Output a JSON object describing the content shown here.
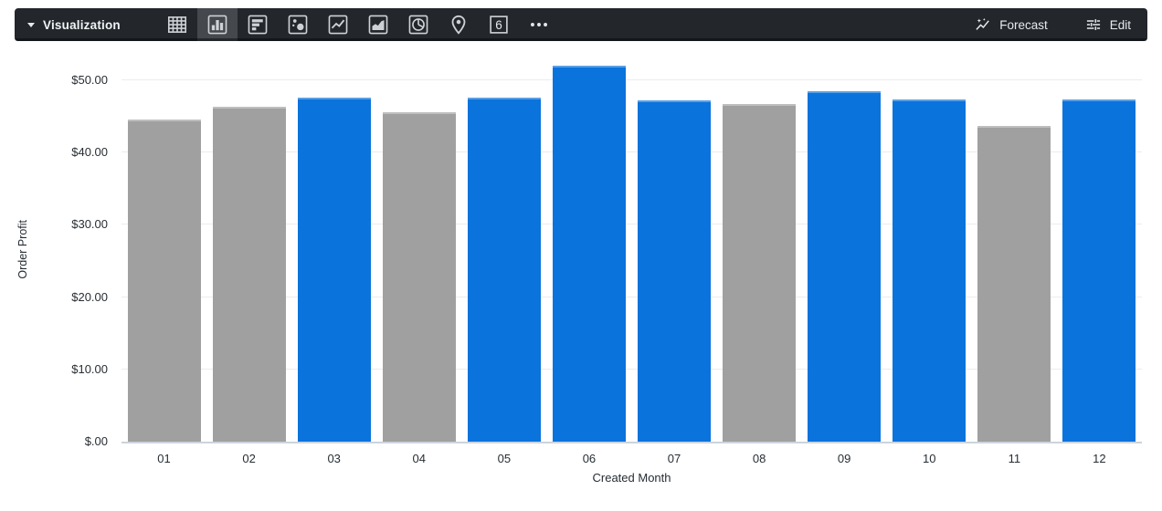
{
  "toolbar": {
    "title": "Visualization",
    "viz_types": [
      {
        "id": "table",
        "selected": false
      },
      {
        "id": "column",
        "selected": true
      },
      {
        "id": "bar",
        "selected": false
      },
      {
        "id": "scatter",
        "selected": false
      },
      {
        "id": "line",
        "selected": false
      },
      {
        "id": "area",
        "selected": false
      },
      {
        "id": "pie",
        "selected": false
      },
      {
        "id": "map",
        "selected": false
      },
      {
        "id": "single-value",
        "selected": false,
        "glyph": "6"
      },
      {
        "id": "more",
        "selected": false
      }
    ],
    "forecast_label": "Forecast",
    "edit_label": "Edit"
  },
  "chart_data": {
    "type": "bar",
    "title": "",
    "xlabel": "Created Month",
    "ylabel": "Order Profit",
    "categories": [
      "01",
      "02",
      "03",
      "04",
      "05",
      "06",
      "07",
      "08",
      "09",
      "10",
      "11",
      "12"
    ],
    "values": [
      44.6,
      46.4,
      47.6,
      45.6,
      47.6,
      52.0,
      47.25,
      46.7,
      48.5,
      47.35,
      43.7,
      47.35
    ],
    "bar_colors": [
      "gray",
      "gray",
      "blue",
      "gray",
      "blue",
      "blue",
      "blue",
      "gray",
      "blue",
      "blue",
      "gray",
      "blue"
    ],
    "palette": {
      "blue": "#0a73dc",
      "gray": "#a0a0a0"
    },
    "y_ticks": [
      "$50.00",
      "$40.00",
      "$30.00",
      "$20.00",
      "$10.00",
      "$.00"
    ],
    "y_tick_values": [
      50,
      40,
      30,
      20,
      10,
      0
    ],
    "ylim": [
      0,
      53.3
    ],
    "grid": "horizontal",
    "legend": "none"
  }
}
